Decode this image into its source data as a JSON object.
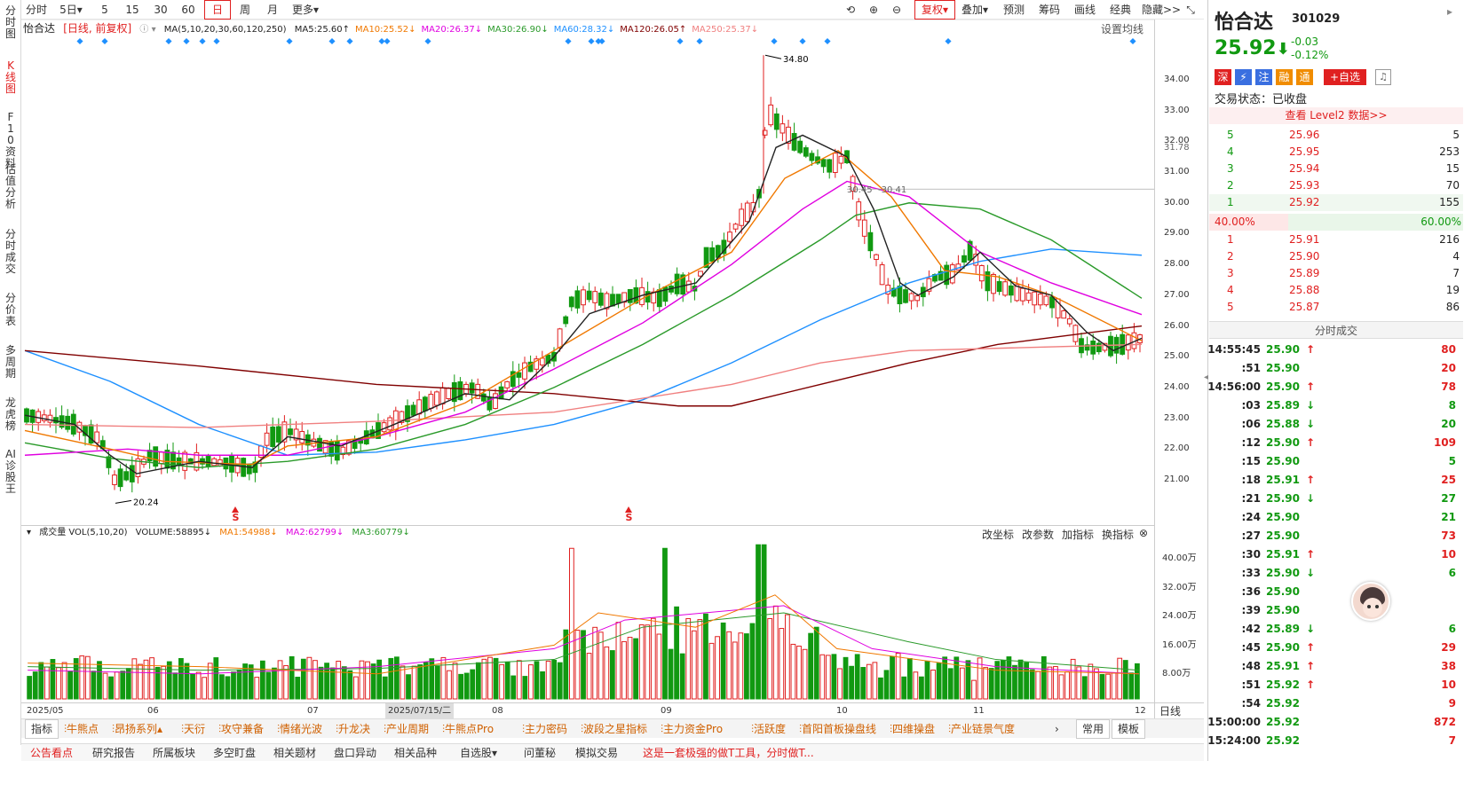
{
  "left_tabs": [
    {
      "label": "分时图",
      "active": false
    },
    {
      "label": "K线图",
      "active": true
    },
    {
      "label": "F10资料",
      "active": false
    },
    {
      "label": "估值分析",
      "active": false
    },
    {
      "label": "分时成交",
      "active": false
    },
    {
      "label": "分价表",
      "active": false
    },
    {
      "label": "多周期",
      "active": false
    },
    {
      "label": "龙虎榜",
      "active": false
    },
    {
      "label": "AI诊股王",
      "active": false
    }
  ],
  "toolbar": {
    "periods": [
      "分时",
      "5日▾",
      "5",
      "15",
      "30",
      "60",
      "日",
      "周",
      "月",
      "更多▾"
    ],
    "active": "日",
    "right": [
      "复权▾",
      "叠加▾",
      "预测",
      "筹码",
      "画线",
      "经典",
      "隐藏>>"
    ]
  },
  "chart_header": {
    "name": "怡合达",
    "mode": "[日线, 前复权]",
    "ma_label": "MA(5,10,20,30,60,120,250)",
    "settings": "设置均线"
  },
  "ma_values": [
    {
      "label": "MA5:25.60↑",
      "color": "#222222"
    },
    {
      "label": "MA10:25.52↓",
      "color": "#f07800"
    },
    {
      "label": "MA20:26.37↓",
      "color": "#e000e0"
    },
    {
      "label": "MA30:26.90↓",
      "color": "#2a9a2a"
    },
    {
      "label": "MA60:28.32↓",
      "color": "#1e90ff"
    },
    {
      "label": "MA120:26.05↑",
      "color": "#800000"
    },
    {
      "label": "MA250:25.37↓",
      "color": "#f08080"
    }
  ],
  "price_axis": {
    "labels": [
      "34.00",
      "33.00",
      "32.00",
      "31.78",
      "31.00",
      "30.00",
      "29.00",
      "28.00",
      "27.00",
      "26.00",
      "25.00",
      "24.00",
      "23.00",
      "22.00",
      "21.00"
    ]
  },
  "annotations": {
    "high": "34.80",
    "low": "20.24",
    "ref_line": "30.45",
    "ref_line2": "30.41",
    "signal": "S"
  },
  "volume": {
    "legend": "成交量 VOL(5,10,20)",
    "volume": "VOLUME:58895↓",
    "ma1": "MA1:54988↓",
    "ma2": "MA2:62799↓",
    "ma3": "MA3:60779↓",
    "buttons": [
      "改坐标",
      "改参数",
      "加指标",
      "换指标"
    ],
    "axis": [
      "40.00万",
      "32.00万",
      "24.00万",
      "16.00万",
      "8.00万"
    ]
  },
  "dates": {
    "labels": [
      "2025/05",
      "06",
      "07",
      "2025/07/15/二",
      "08",
      "09",
      "10",
      "11",
      "12"
    ],
    "right": "日线"
  },
  "indicators": [
    "指标",
    "牛熊点",
    "昂扬系列▴",
    "天衍",
    "攻守兼备",
    "情绪光波",
    "升龙决",
    "产业周期",
    "牛熊点Pro",
    "主力密码",
    "波段之星指标",
    "主力资金Pro",
    "活跃度",
    "首阳首板操盘线",
    "四维操盘",
    "产业链景气度"
  ],
  "indicator_right": [
    "常用",
    "模板"
  ],
  "bottom_tabs": [
    "公告看点",
    "研究报告",
    "所属板块",
    "多空盯盘",
    "相关题材",
    "盘口异动",
    "相关品种",
    "自选股▾",
    "问董秘",
    "模拟交易"
  ],
  "bottom_marquee": "这是一套极强的做T工具，分时做T...",
  "quote": {
    "name": "怡合达",
    "code": "301029",
    "price": "25.92",
    "arrow": "⬇",
    "change": "-0.03",
    "pct": "-0.12%",
    "tags": [
      "深",
      "⚡",
      "注",
      "融",
      "通"
    ],
    "add": "+自选",
    "status": "交易状态：已收盘",
    "level2": "查看 Level2 数据>>",
    "ratio_left": "40.00%",
    "ratio_right": "60.00%"
  },
  "asks": [
    {
      "n": "5",
      "p": "25.96",
      "v": "5"
    },
    {
      "n": "4",
      "p": "25.95",
      "v": "253"
    },
    {
      "n": "3",
      "p": "25.94",
      "v": "15"
    },
    {
      "n": "2",
      "p": "25.93",
      "v": "70"
    },
    {
      "n": "1",
      "p": "25.92",
      "v": "155"
    }
  ],
  "bids": [
    {
      "n": "1",
      "p": "25.91",
      "v": "216"
    },
    {
      "n": "2",
      "p": "25.90",
      "v": "4"
    },
    {
      "n": "3",
      "p": "25.89",
      "v": "7"
    },
    {
      "n": "4",
      "p": "25.88",
      "v": "19"
    },
    {
      "n": "5",
      "p": "25.87",
      "v": "86"
    }
  ],
  "ticks_title": "分时成交",
  "ticks": [
    {
      "t": "14:55:45",
      "p": "25.90",
      "d": "↑",
      "v": "80",
      "c": "up"
    },
    {
      "t": ":51",
      "p": "25.90",
      "d": "",
      "v": "20",
      "c": "up"
    },
    {
      "t": "14:56:00",
      "p": "25.90",
      "d": "↑",
      "v": "78",
      "c": "up"
    },
    {
      "t": ":03",
      "p": "25.89",
      "d": "↓",
      "v": "8",
      "c": "dn"
    },
    {
      "t": ":06",
      "p": "25.88",
      "d": "↓",
      "v": "20",
      "c": "dn"
    },
    {
      "t": ":12",
      "p": "25.90",
      "d": "↑",
      "v": "109",
      "c": "up"
    },
    {
      "t": ":15",
      "p": "25.90",
      "d": "",
      "v": "5",
      "c": "dn"
    },
    {
      "t": ":18",
      "p": "25.91",
      "d": "↑",
      "v": "25",
      "c": "up"
    },
    {
      "t": ":21",
      "p": "25.90",
      "d": "↓",
      "v": "27",
      "c": "dn"
    },
    {
      "t": ":24",
      "p": "25.90",
      "d": "",
      "v": "21",
      "c": "dn"
    },
    {
      "t": ":27",
      "p": "25.90",
      "d": "",
      "v": "73",
      "c": "up"
    },
    {
      "t": ":30",
      "p": "25.91",
      "d": "↑",
      "v": "10",
      "c": "up"
    },
    {
      "t": ":33",
      "p": "25.90",
      "d": "↓",
      "v": "6",
      "c": "dn"
    },
    {
      "t": ":36",
      "p": "25.90",
      "d": "",
      "v": "",
      "c": "dn"
    },
    {
      "t": ":39",
      "p": "25.90",
      "d": "",
      "v": "",
      "c": "dn"
    },
    {
      "t": ":42",
      "p": "25.89",
      "d": "↓",
      "v": "6",
      "c": "dn"
    },
    {
      "t": ":45",
      "p": "25.90",
      "d": "↑",
      "v": "29",
      "c": "up"
    },
    {
      "t": ":48",
      "p": "25.91",
      "d": "↑",
      "v": "38",
      "c": "up"
    },
    {
      "t": ":51",
      "p": "25.92",
      "d": "↑",
      "v": "10",
      "c": "up"
    },
    {
      "t": ":54",
      "p": "25.92",
      "d": "",
      "v": "9",
      "c": "up"
    },
    {
      "t": "15:00:00",
      "p": "25.92",
      "d": "",
      "v": "872",
      "c": "up"
    },
    {
      "t": "15:24:00",
      "p": "25.92",
      "d": "",
      "v": "7",
      "c": "up"
    }
  ]
}
